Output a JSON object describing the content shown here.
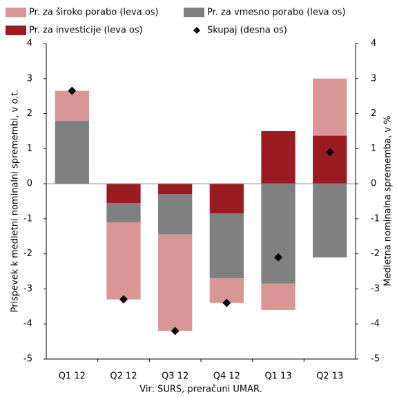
{
  "chart_data": {
    "type": "bar",
    "categories": [
      "Q1 12",
      "Q2 12",
      "Q3 12",
      "Q4 12",
      "Q1 13",
      "Q2 13"
    ],
    "series": [
      {
        "name": "Pr. za široko porabo (leva os)",
        "color": "#d99694",
        "values": [
          0.85,
          -2.2,
          -2.75,
          -0.7,
          -0.75,
          1.63
        ]
      },
      {
        "name": "Pr. za vmesno porabo (leva os)",
        "color": "#808080",
        "values": [
          1.8,
          -0.55,
          -1.15,
          -1.85,
          -2.85,
          -2.1
        ]
      },
      {
        "name": "Pr. za investicije (leva os)",
        "color": "#9b1c20",
        "values": [
          0,
          -0.55,
          -0.3,
          -0.85,
          1.5,
          1.37
        ]
      },
      {
        "name": "Skupaj (desna os)",
        "color": "#000000",
        "axis": "y2",
        "type": "scatter",
        "values": [
          2.65,
          -3.3,
          -4.2,
          -3.4,
          -2.1,
          0.9
        ]
      }
    ],
    "ylabel": "Prispevek k medletni nominalni spremembi, v o.t.",
    "y2label": "Medletna nominalna sprememba, v %",
    "ylim": [
      -5,
      4
    ],
    "yticks": [
      -5,
      -4,
      -3,
      -2,
      -1,
      0,
      1,
      2,
      3,
      4
    ],
    "y2lim": [
      -5,
      4
    ],
    "y2ticks": [
      -5,
      -4,
      -3,
      -2,
      -1,
      0,
      1,
      2,
      3,
      4
    ],
    "source": "Vir: SURS, preračuni UMAR.",
    "stacked": true
  }
}
